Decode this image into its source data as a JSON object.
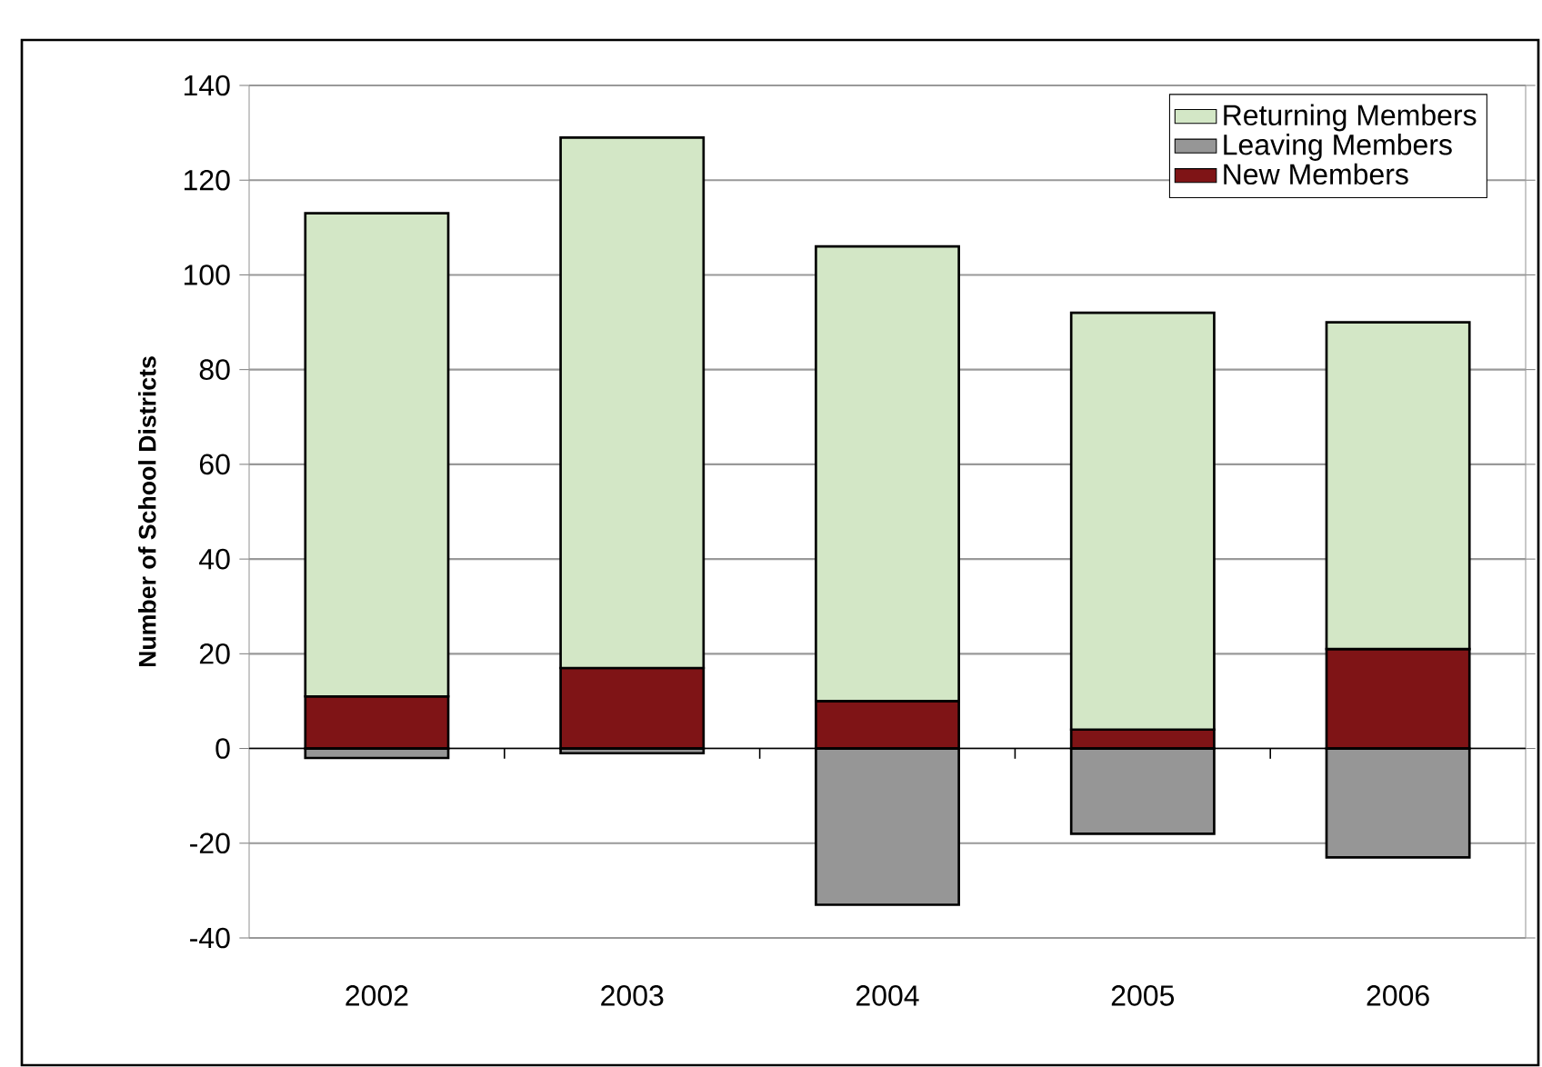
{
  "chart_data": {
    "type": "bar",
    "stacked": true,
    "ylabel": "Number of School Districts",
    "categories": [
      "2002",
      "2003",
      "2004",
      "2005",
      "2006"
    ],
    "series": [
      {
        "name": "New Members",
        "color": "#7f1416",
        "values": [
          11,
          17,
          10,
          4,
          21
        ]
      },
      {
        "name": "Leaving Members",
        "color": "#969696",
        "values": [
          -2,
          -1,
          -33,
          -18,
          -23
        ]
      },
      {
        "name": "Returning Members",
        "color": "#d3e7c6",
        "values": [
          102,
          112,
          96,
          88,
          69
        ]
      }
    ],
    "ylim": [
      -40,
      140
    ],
    "yticks": [
      -40,
      -20,
      0,
      20,
      40,
      60,
      80,
      100,
      120,
      140
    ],
    "grid": "y",
    "legend": "top right"
  }
}
